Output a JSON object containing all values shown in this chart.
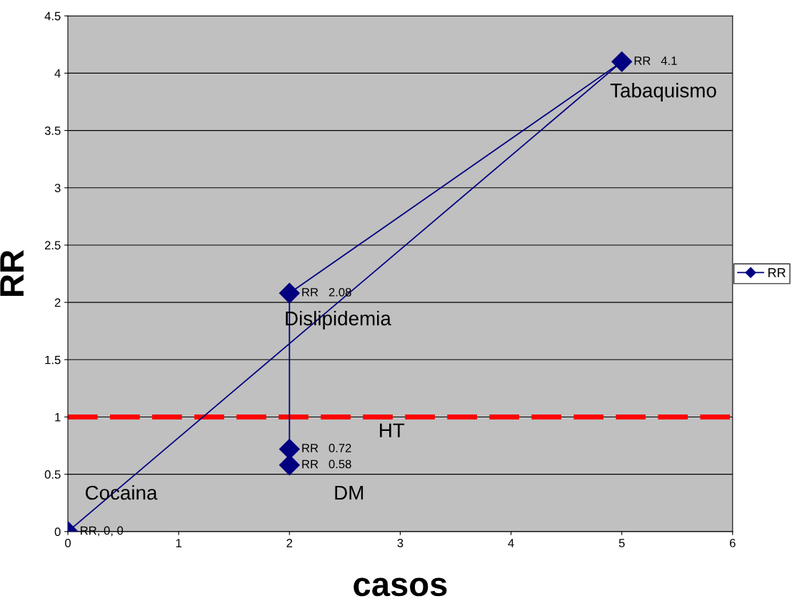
{
  "chart_data": {
    "type": "line",
    "xlabel": "casos",
    "ylabel": "RR",
    "x": [
      0,
      5,
      2,
      2,
      2
    ],
    "series": [
      {
        "name": "RR",
        "color": "#000080",
        "values": [
          0,
          4.1,
          2.08,
          0.72,
          0.58
        ],
        "value_labels": [
          "RR, 0, 0",
          "RR   4.1",
          "RR   2.08",
          "RR   0.72",
          "RR   0.58"
        ]
      }
    ],
    "marker": "diamond",
    "line_style": "solid",
    "xlim": [
      0,
      6
    ],
    "xticks": [
      0,
      1,
      2,
      3,
      4,
      5,
      6
    ],
    "ylim": [
      0,
      4.5
    ],
    "yticks": [
      0,
      0.5,
      1,
      1.5,
      2,
      2.5,
      3,
      3.5,
      4,
      4.5
    ],
    "grid": "y",
    "legend": "right",
    "ref_lines": [
      {
        "axis": "y",
        "value": 1,
        "color": "#ff0000",
        "line_style": "dashed"
      }
    ],
    "annotations": [
      "Tabaquismo",
      "Dislipidemia",
      "HT",
      "DM",
      "Cocaina"
    ]
  }
}
